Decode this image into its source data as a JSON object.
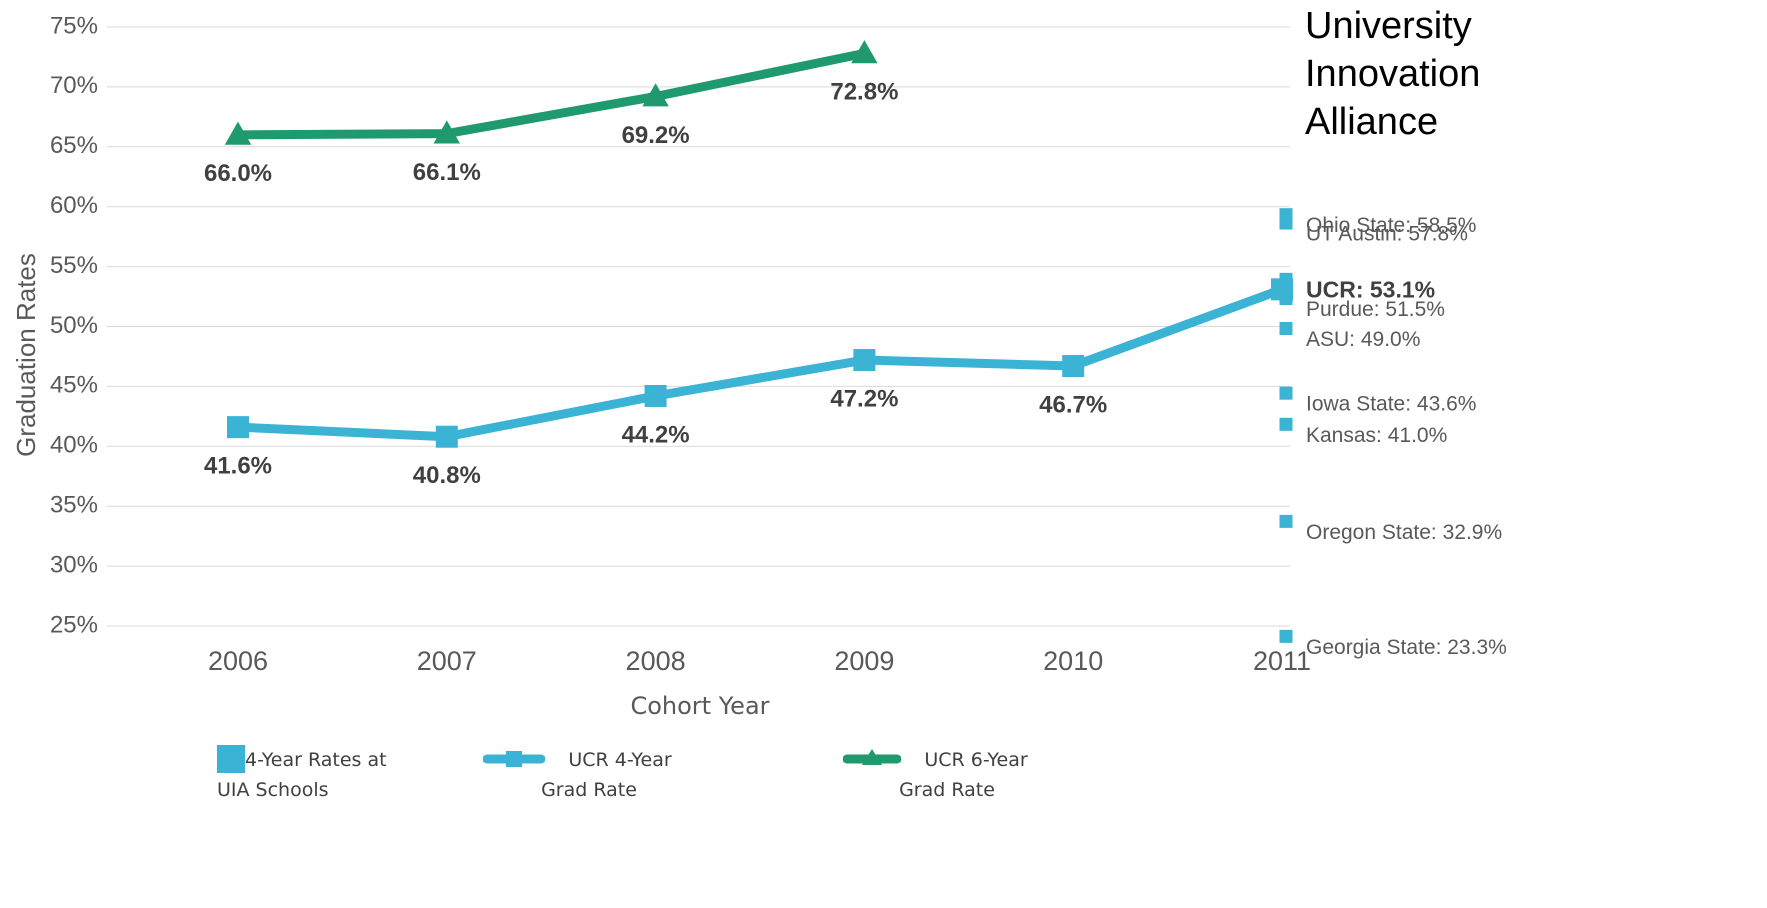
{
  "chart_data": {
    "type": "line",
    "title": "University Innovation Alliance",
    "xlabel": "Cohort Year",
    "ylabel": "Graduation Rates",
    "categories": [
      "2006",
      "2007",
      "2008",
      "2009",
      "2010",
      "2011"
    ],
    "ylim": [
      25,
      75
    ],
    "yticks": [
      {
        "value": 25,
        "label": "25%"
      },
      {
        "value": 30,
        "label": "30%"
      },
      {
        "value": 35,
        "label": "35%"
      },
      {
        "value": 40,
        "label": "40%"
      },
      {
        "value": 45,
        "label": "45%"
      },
      {
        "value": 50,
        "label": "50%"
      },
      {
        "value": 55,
        "label": "55%"
      },
      {
        "value": 60,
        "label": "60%"
      },
      {
        "value": 65,
        "label": "65%"
      },
      {
        "value": 70,
        "label": "70%"
      },
      {
        "value": 75,
        "label": "75%"
      }
    ],
    "grid": true,
    "series": [
      {
        "name": "UCR 4-Year Grad Rate",
        "color": "#3bb3d4",
        "marker": "square",
        "values": [
          41.6,
          40.8,
          44.2,
          47.2,
          46.7,
          53.1
        ],
        "value_labels": [
          "41.6%",
          "40.8%",
          "44.2%",
          "47.2%",
          "46.7%",
          null
        ]
      },
      {
        "name": "UCR 6-Year Grad Rate",
        "color": "#1f9a6f",
        "marker": "triangle",
        "values": [
          66.0,
          66.1,
          69.2,
          72.8,
          null,
          null
        ],
        "value_labels": [
          "66.0%",
          "66.1%",
          "69.2%",
          "72.8%",
          null,
          null
        ]
      }
    ],
    "schools": {
      "name": "4-Year Rates at UIA Schools",
      "color": "#3bb3d4",
      "category": "2011",
      "points": [
        {
          "value": 58.5,
          "label": "Ohio State: 58.5%"
        },
        {
          "value": 57.8,
          "label": "UT Austin: 57.8%"
        },
        {
          "value": 53.1,
          "label": "UCR: 53.1%",
          "bold": true
        },
        {
          "value": 51.5,
          "label": "Purdue: 51.5%"
        },
        {
          "value": 49.0,
          "label": "ASU: 49.0%"
        },
        {
          "value": 43.6,
          "label": "Iowa State: 43.6%"
        },
        {
          "value": 41.0,
          "label": "Kansas: 41.0%"
        },
        {
          "value": 32.9,
          "label": "Oregon State: 32.9%"
        },
        {
          "value": 23.3,
          "label": "Georgia State: 23.3%"
        }
      ]
    },
    "legend": "bottom"
  }
}
